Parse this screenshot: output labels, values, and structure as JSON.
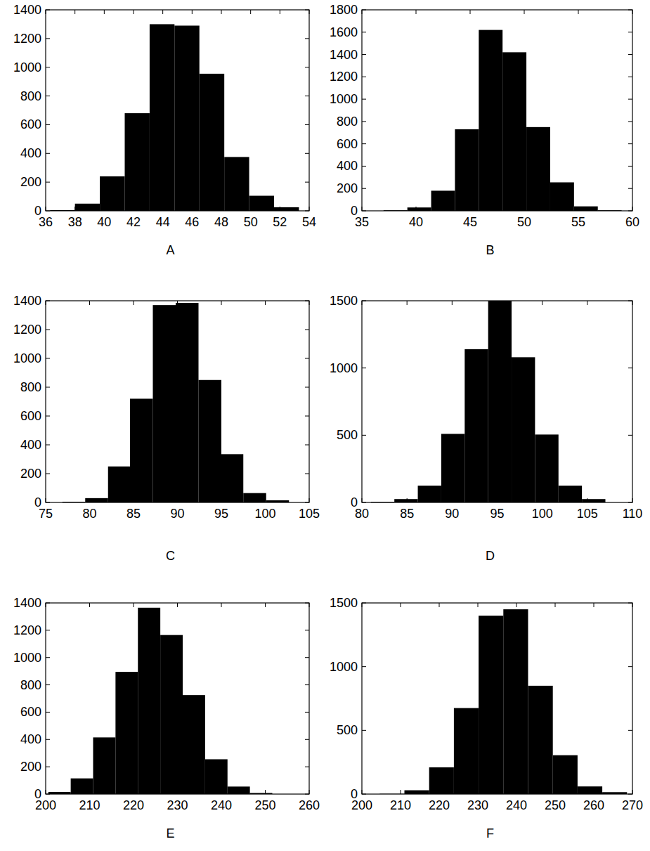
{
  "chart_data": [
    {
      "type": "histogram",
      "title": "A",
      "color": "#000000",
      "bins": [
        36.3,
        38.0,
        39.7,
        41.4,
        43.1,
        44.8,
        46.5,
        48.2,
        49.9,
        51.6,
        53.3
      ],
      "values": [
        5,
        50,
        240,
        680,
        1300,
        1290,
        955,
        375,
        105,
        25
      ],
      "xlim": [
        36,
        54
      ],
      "xticks": [
        36,
        38,
        40,
        42,
        44,
        46,
        48,
        50,
        52,
        54
      ],
      "ylim": [
        0,
        1400
      ],
      "yticks": [
        0,
        200,
        400,
        600,
        800,
        1000,
        1200,
        1400
      ],
      "grid": false
    },
    {
      "type": "histogram",
      "title": "B",
      "color": "#000000",
      "bins": [
        37.0,
        39.2,
        41.4,
        43.6,
        45.8,
        48.0,
        50.2,
        52.4,
        54.6,
        56.8,
        59.0
      ],
      "values": [
        5,
        30,
        180,
        730,
        1620,
        1420,
        750,
        255,
        40,
        5
      ],
      "xlim": [
        35,
        60
      ],
      "xticks": [
        35,
        40,
        45,
        50,
        55,
        60
      ],
      "ylim": [
        0,
        1800
      ],
      "yticks": [
        0,
        200,
        400,
        600,
        800,
        1000,
        1200,
        1400,
        1600,
        1800
      ],
      "grid": false
    },
    {
      "type": "histogram",
      "title": "C",
      "color": "#000000",
      "bins": [
        76.9,
        79.5,
        82.1,
        84.6,
        87.2,
        89.8,
        92.4,
        95.0,
        97.5,
        100.1,
        102.7
      ],
      "values": [
        5,
        30,
        250,
        720,
        1370,
        1385,
        850,
        335,
        65,
        15
      ],
      "xlim": [
        75,
        105
      ],
      "xticks": [
        75,
        80,
        85,
        90,
        95,
        100,
        105
      ],
      "ylim": [
        0,
        1400
      ],
      "yticks": [
        0,
        200,
        400,
        600,
        800,
        1000,
        1200,
        1400
      ],
      "grid": false
    },
    {
      "type": "histogram",
      "title": "D",
      "color": "#000000",
      "bins": [
        81.0,
        83.6,
        86.2,
        88.8,
        91.4,
        94.0,
        96.6,
        99.2,
        101.8,
        104.4,
        107.0
      ],
      "values": [
        5,
        25,
        125,
        510,
        1140,
        1500,
        1080,
        505,
        125,
        25
      ],
      "xlim": [
        80,
        110
      ],
      "xticks": [
        80,
        85,
        90,
        95,
        100,
        105,
        110
      ],
      "ylim": [
        0,
        1500
      ],
      "yticks": [
        0,
        500,
        1000,
        1500
      ],
      "grid": false
    },
    {
      "type": "histogram",
      "title": "E",
      "color": "#000000",
      "bins": [
        200.6,
        205.7,
        210.8,
        215.9,
        221.0,
        226.1,
        231.2,
        236.3,
        241.4,
        246.5,
        251.6
      ],
      "values": [
        15,
        115,
        415,
        895,
        1365,
        1165,
        725,
        255,
        55,
        8
      ],
      "xlim": [
        200,
        260
      ],
      "xticks": [
        200,
        210,
        220,
        230,
        240,
        250,
        260
      ],
      "ylim": [
        0,
        1400
      ],
      "yticks": [
        0,
        200,
        400,
        600,
        800,
        1000,
        1200,
        1400
      ],
      "grid": false
    },
    {
      "type": "histogram",
      "title": "F",
      "color": "#000000",
      "bins": [
        204.6,
        211.0,
        217.4,
        223.8,
        230.2,
        236.6,
        243.0,
        249.4,
        255.8,
        262.2,
        268.6
      ],
      "values": [
        2,
        30,
        210,
        675,
        1400,
        1450,
        850,
        305,
        60,
        15
      ],
      "xlim": [
        200,
        270
      ],
      "xticks": [
        200,
        210,
        220,
        230,
        240,
        250,
        260,
        270
      ],
      "ylim": [
        0,
        1500
      ],
      "yticks": [
        0,
        500,
        1000,
        1500
      ],
      "grid": false
    }
  ]
}
